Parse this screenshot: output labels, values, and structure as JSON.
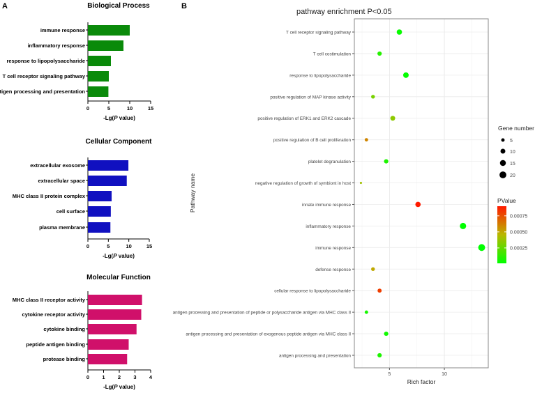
{
  "panel_labels": {
    "a": "A",
    "b": "B"
  },
  "chart_data": [
    {
      "type": "bar",
      "orientation": "horizontal",
      "title": "Biological Process",
      "xlabel_prefix": "-Lg(",
      "xlabel_italic": "P",
      "xlabel_suffix": " value)",
      "categories": [
        "immune response",
        "inflammatory response",
        "response to lipopolysaccharide",
        "T cell receptor signaling pathway",
        "antigen processing and presentation"
      ],
      "values": [
        10.0,
        8.5,
        5.5,
        5.0,
        4.9
      ],
      "xlim": [
        0,
        15
      ],
      "xticks": [
        "0",
        "5",
        "10",
        "15"
      ],
      "color": "#0a8a0a"
    },
    {
      "type": "bar",
      "orientation": "horizontal",
      "title": "Cellular Component",
      "xlabel_prefix": "-Lg(",
      "xlabel_italic": "P",
      "xlabel_suffix": " value)",
      "categories": [
        "extracellular exosome",
        "extracellular space",
        "MHC class II protein complex",
        "cell surface",
        "plasma membrane"
      ],
      "values": [
        9.9,
        9.5,
        5.8,
        5.6,
        5.5
      ],
      "xlim": [
        0,
        15
      ],
      "xticks": [
        "0",
        "5",
        "10",
        "15"
      ],
      "color": "#1010c0"
    },
    {
      "type": "bar",
      "orientation": "horizontal",
      "title": "Molecular Function",
      "xlabel_prefix": "-Lg(",
      "xlabel_italic": "P",
      "xlabel_suffix": " value)",
      "categories": [
        "MHC class II receptor activity",
        "cytokine receptor activity",
        "cytokine binding",
        "peptide antigen binding",
        "protease binding"
      ],
      "values": [
        3.45,
        3.4,
        3.1,
        2.6,
        2.5
      ],
      "xlim": [
        0,
        4
      ],
      "xticks": [
        "0",
        "1",
        "2",
        "3",
        "4"
      ],
      "color": "#d0106a"
    },
    {
      "type": "scatter",
      "title": "pathway enrichment P<0.05",
      "xlabel": "Rich factor",
      "ylabel": "Pathway name",
      "xlim": [
        1.8,
        14.0
      ],
      "xticks": [
        "5",
        "10"
      ],
      "grid": true,
      "categories": [
        "T cell receptor signaling pathway",
        "T cell costimulation",
        "response to lipopolysaccharide",
        "positive regulation of MAP kinase activity",
        "positive regulation of ERK1 and ERK2 cascade",
        "positive regulation of B cell proliferation",
        "platelet degranulation",
        "negative regulation of growth of symbiont in host",
        "innate immune response",
        "inflammatory response",
        "immune response",
        "defense response",
        "cellular response to lipopolysaccharide",
        "antigen processing and presentation of peptide or polysaccharide antigen via MHC class II",
        "antigen processing and presentation of exogenous peptide antigen via MHC class II",
        "antigen processing and presentation"
      ],
      "rich_factor": [
        5.9,
        4.1,
        6.5,
        3.5,
        5.3,
        2.9,
        4.7,
        2.4,
        7.6,
        11.7,
        13.4,
        3.5,
        4.1,
        2.9,
        4.7,
        4.1
      ],
      "gene_number": [
        12,
        8,
        13,
        6,
        10,
        5,
        8,
        2,
        12,
        17,
        20,
        6,
        7,
        5,
        8,
        8
      ],
      "pvalue": [
        3e-05,
        0.0001,
        2e-05,
        0.0003,
        0.00035,
        0.0006,
        8e-05,
        0.0004,
        0.00095,
        1e-05,
        1e-05,
        0.0005,
        0.0008,
        6e-05,
        5e-05,
        8e-05
      ],
      "size_legend": {
        "title": "Gene number",
        "values": [
          5,
          10,
          15,
          20
        ],
        "labels": [
          "5",
          "10",
          "15",
          "20"
        ]
      },
      "color_legend": {
        "title": "PValue",
        "range": [
          1e-05,
          0.0009
        ],
        "ticks": [
          0.00075,
          0.0005,
          0.00025
        ],
        "labels": [
          "0.00075",
          "0.00050",
          "0.00025"
        ],
        "low_color": "#00ff00",
        "mid_color": "#b8b800",
        "high_color": "#ff1a00"
      },
      "legend_position": "right"
    }
  ]
}
